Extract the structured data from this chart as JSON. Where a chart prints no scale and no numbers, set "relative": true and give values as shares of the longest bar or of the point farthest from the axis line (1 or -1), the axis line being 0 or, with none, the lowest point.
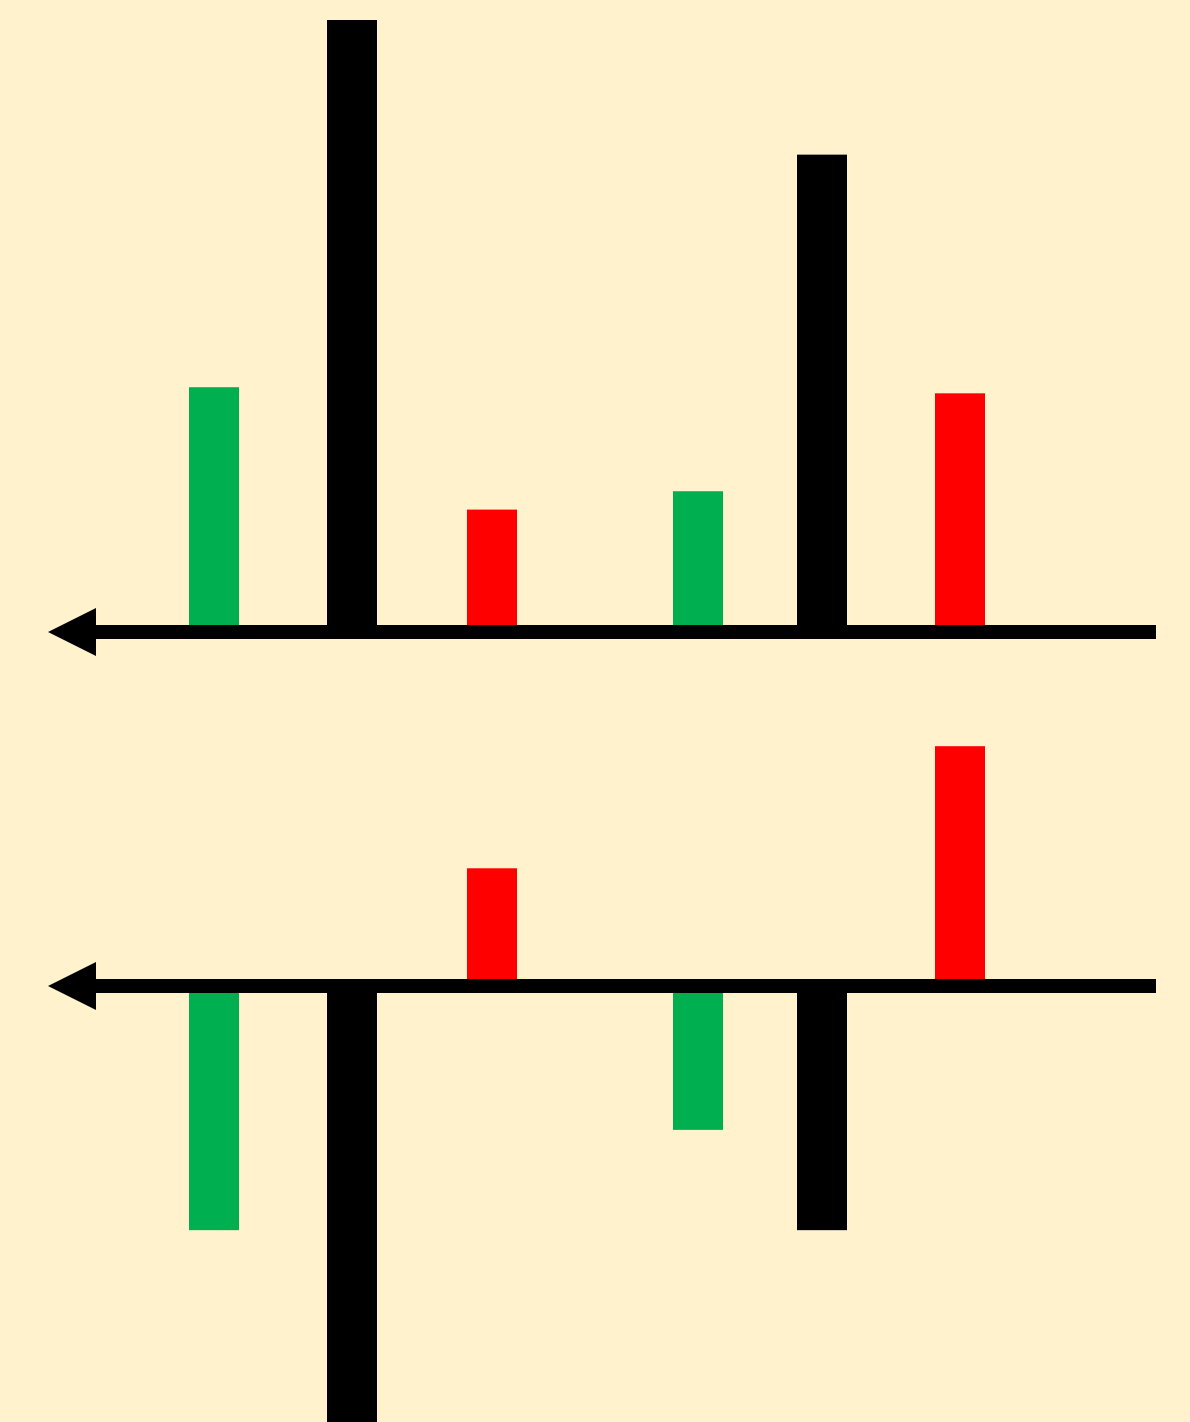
{
  "chart_data": [
    {
      "type": "bar",
      "relative": true,
      "categories": [
        null,
        null,
        null,
        null,
        null,
        null
      ],
      "values": [
        0.4,
        1,
        0.2,
        0.23,
        0.78,
        0.39
      ],
      "colors": [
        "#00b050",
        "#000000",
        "#ff0000",
        "#00b050",
        "#000000",
        "#ff0000"
      ]
    },
    {
      "type": "bar",
      "relative": true,
      "categories": [
        null,
        null,
        null,
        null,
        null,
        null
      ],
      "values": [
        -0.56,
        -1,
        0.27,
        -0.33,
        -0.56,
        0.55
      ],
      "colors": [
        "#00b050",
        "#000000",
        "#ff0000",
        "#00b050",
        "#000000",
        "#ff0000"
      ]
    }
  ]
}
